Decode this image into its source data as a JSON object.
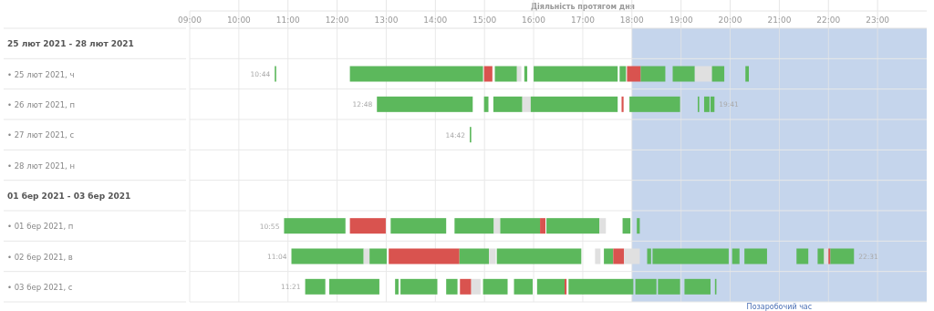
{
  "chart_data": {
    "type": "bar",
    "orientation": "horizontal",
    "title": "Діяльність протягом дня",
    "categories": [
      "25 лют 2021 - 28 лют 2021",
      "• 25 лют 2021, ч",
      "• 26 лют 2021, п",
      "• 27 лют 2021, с",
      "• 28 лют 2021, н",
      "01 бер 2021 - 03 бер 2021",
      "• 01 бер 2021, п",
      "• 02 бер 2021, в",
      "• 03 бер 2021, с"
    ],
    "xlim": [
      9,
      24
    ],
    "xticks": [
      {
        "value": 9,
        "label": "09:00"
      },
      {
        "value": 10,
        "label": "10:00"
      },
      {
        "value": 11,
        "label": "11:00"
      },
      {
        "value": 12,
        "label": "12:00"
      },
      {
        "value": 13,
        "label": "13:00"
      },
      {
        "value": 14,
        "label": "14:00"
      },
      {
        "value": 15,
        "label": "15:00"
      },
      {
        "value": 16,
        "label": "16:00"
      },
      {
        "value": 17,
        "label": "17:00"
      },
      {
        "value": 18,
        "label": "18:00"
      },
      {
        "value": 19,
        "label": "19:00"
      },
      {
        "value": 20,
        "label": "20:00"
      },
      {
        "value": 21,
        "label": "21:00"
      },
      {
        "value": 22,
        "label": "22:00"
      },
      {
        "value": 23,
        "label": "23:00"
      }
    ],
    "grid": "x",
    "bands": [
      {
        "axis": "x",
        "from": 18,
        "to": 24,
        "label": "Позаробочий час",
        "color": "#c5d5ec"
      }
    ],
    "annotations": [
      {
        "text": "10:44",
        "x": 10.73,
        "y": "• 25 лют 2021, ч"
      },
      {
        "text": "12:48",
        "x": 12.81,
        "y": "• 26 лют 2021, п"
      },
      {
        "text": "19:41",
        "x": 19.68,
        "y": "• 26 лют 2021, п"
      },
      {
        "text": "14:42",
        "x": 14.7,
        "y": "• 27 лют 2021, с"
      },
      {
        "text": "10:55",
        "x": 10.92,
        "y": "• 01 бер 2021, п"
      },
      {
        "text": "11:04",
        "x": 11.07,
        "y": "• 02 бер 2021, в"
      },
      {
        "text": "22:31",
        "x": 22.52,
        "y": "• 02 бер 2021, в"
      },
      {
        "text": "11:21",
        "x": 11.35,
        "y": "• 03 бер 2021, с"
      }
    ],
    "series": [
      {
        "base": [
          null,
          10.73,
          12.81,
          14.7,
          null,
          null,
          10.92,
          11.07,
          11.35
        ],
        "values": [
          null,
          0.03,
          1.95,
          0.03,
          null,
          null,
          1.25,
          1.47,
          0.41
        ],
        "colors": [
          null,
          "#5cb85c",
          "#5cb85c",
          "#5cb85c",
          null,
          null,
          "#5cb85c",
          "#5cb85c",
          "#5cb85c"
        ]
      },
      {
        "base": [
          null,
          12.26,
          14.99,
          null,
          null,
          null,
          12.26,
          12.54,
          11.84
        ],
        "values": [
          null,
          2.71,
          0.09,
          null,
          null,
          null,
          0.73,
          0.12,
          1.02
        ],
        "colors": [
          null,
          "#5cb85c",
          "#5cb85c",
          null,
          null,
          null,
          "#d9534f",
          "#e0e0e0",
          "#5cb85c"
        ]
      },
      {
        "base": [
          null,
          14.99,
          15.18,
          null,
          null,
          null,
          13.09,
          12.66,
          13.18
        ],
        "values": [
          null,
          0.17,
          0.59,
          null,
          null,
          null,
          1.13,
          0.35,
          0.07
        ],
        "colors": [
          null,
          "#d9534f",
          "#5cb85c",
          null,
          null,
          null,
          "#5cb85c",
          "#5cb85c",
          "#5cb85c"
        ]
      },
      {
        "base": [
          null,
          15.21,
          15.77,
          null,
          null,
          null,
          14.39,
          13.05,
          13.29
        ],
        "values": [
          null,
          0.45,
          0.17,
          null,
          null,
          null,
          0.8,
          1.44,
          0.75
        ],
        "colors": [
          null,
          "#5cb85c",
          "#e0e0e0",
          null,
          null,
          null,
          "#5cb85c",
          "#d9534f",
          "#5cb85c"
        ]
      },
      {
        "base": [
          null,
          15.66,
          15.94,
          null,
          null,
          null,
          15.19,
          14.49,
          14.22
        ],
        "values": [
          null,
          0.09,
          1.77,
          null,
          null,
          null,
          0.13,
          0.6,
          0.23
        ],
        "colors": [
          null,
          "#e0e0e0",
          "#5cb85c",
          null,
          null,
          null,
          "#e0e0e0",
          "#5cb85c",
          "#5cb85c"
        ]
      },
      {
        "base": [
          null,
          15.81,
          17.79,
          null,
          null,
          null,
          15.32,
          15.09,
          14.5
        ],
        "values": [
          null,
          0.06,
          0.04,
          null,
          null,
          null,
          0.81,
          0.14,
          0.23
        ],
        "colors": [
          null,
          "#5cb85c",
          "#d9534f",
          null,
          null,
          null,
          "#5cb85c",
          "#e0e0e0",
          "#d9534f"
        ]
      },
      {
        "base": [
          null,
          16.0,
          17.95,
          null,
          null,
          null,
          16.13,
          15.25,
          14.73
        ],
        "values": [
          null,
          1.71,
          1.03,
          null,
          null,
          null,
          0.11,
          1.72,
          0.19
        ],
        "colors": [
          null,
          "#5cb85c",
          "#5cb85c",
          null,
          null,
          null,
          "#d9534f",
          "#5cb85c",
          "#e0e0e0"
        ]
      },
      {
        "base": [
          null,
          17.75,
          19.34,
          null,
          null,
          null,
          16.26,
          17.25,
          14.97
        ],
        "values": [
          null,
          0.13,
          0.03,
          null,
          null,
          null,
          1.08,
          0.11,
          0.5
        ],
        "colors": [
          null,
          "#5cb85c",
          "#5cb85c",
          null,
          null,
          null,
          "#5cb85c",
          "#e0e0e0",
          "#5cb85c"
        ]
      },
      {
        "base": [
          null,
          17.9,
          19.47,
          null,
          null,
          null,
          17.34,
          17.43,
          15.6
        ],
        "values": [
          null,
          0.28,
          0.11,
          null,
          null,
          null,
          0.13,
          0.19,
          0.38
        ],
        "colors": [
          null,
          "#d9534f",
          "#5cb85c",
          null,
          null,
          null,
          "#e0e0e0",
          "#5cb85c",
          "#5cb85c"
        ]
      },
      {
        "base": [
          null,
          18.18,
          19.6,
          null,
          null,
          null,
          17.81,
          17.62,
          16.07
        ],
        "values": [
          null,
          0.5,
          0.08,
          null,
          null,
          null,
          0.16,
          0.22,
          0.56
        ],
        "colors": [
          null,
          "#5cb85c",
          "#5cb85c",
          null,
          null,
          null,
          "#5cb85c",
          "#d9534f",
          "#5cb85c"
        ]
      },
      {
        "base": [
          null,
          18.83,
          null,
          null,
          null,
          null,
          18.1,
          17.84,
          16.63
        ],
        "values": [
          null,
          0.45,
          null,
          null,
          null,
          null,
          0.06,
          0.32,
          0.04
        ],
        "colors": [
          null,
          "#5cb85c",
          null,
          null,
          null,
          null,
          "#5cb85c",
          "#e0e0e0",
          "#d9534f"
        ]
      },
      {
        "base": [
          null,
          19.28,
          null,
          null,
          null,
          null,
          null,
          18.31,
          16.71
        ],
        "values": [
          null,
          0.35,
          null,
          null,
          null,
          null,
          null,
          0.08,
          1.32
        ],
        "colors": [
          null,
          "#e0e0e0",
          null,
          null,
          null,
          null,
          null,
          "#5cb85c",
          "#5cb85c"
        ]
      },
      {
        "base": [
          null,
          19.63,
          null,
          null,
          null,
          null,
          null,
          18.42,
          18.07
        ],
        "values": [
          null,
          0.25,
          null,
          null,
          null,
          null,
          null,
          1.55,
          0.43
        ],
        "colors": [
          null,
          "#5cb85c",
          null,
          null,
          null,
          null,
          null,
          "#5cb85c",
          "#5cb85c"
        ]
      },
      {
        "base": [
          null,
          20.31,
          null,
          null,
          null,
          null,
          null,
          20.04,
          18.53
        ],
        "values": [
          null,
          0.07,
          null,
          null,
          null,
          null,
          null,
          0.15,
          0.45
        ],
        "colors": [
          null,
          "#5cb85c",
          null,
          null,
          null,
          null,
          null,
          "#5cb85c",
          "#5cb85c"
        ]
      },
      {
        "base": [
          null,
          null,
          null,
          null,
          null,
          null,
          null,
          20.29,
          19.07
        ],
        "values": [
          null,
          null,
          null,
          null,
          null,
          null,
          null,
          0.46,
          0.53
        ],
        "colors": [
          null,
          null,
          null,
          null,
          null,
          null,
          null,
          "#5cb85c",
          "#5cb85c"
        ]
      },
      {
        "base": [
          null,
          null,
          null,
          null,
          null,
          null,
          null,
          21.35,
          19.69
        ],
        "values": [
          null,
          null,
          null,
          null,
          null,
          null,
          null,
          0.24,
          0.03
        ],
        "colors": [
          null,
          null,
          null,
          null,
          null,
          null,
          null,
          "#5cb85c",
          "#5cb85c"
        ]
      },
      {
        "base": [
          null,
          null,
          null,
          null,
          null,
          null,
          null,
          21.78,
          null
        ],
        "values": [
          null,
          null,
          null,
          null,
          null,
          null,
          null,
          0.13,
          null
        ],
        "colors": [
          null,
          null,
          null,
          null,
          null,
          null,
          null,
          "#5cb85c",
          null
        ]
      },
      {
        "base": [
          null,
          null,
          null,
          null,
          null,
          null,
          null,
          21.91,
          null
        ],
        "values": [
          null,
          null,
          null,
          null,
          null,
          null,
          null,
          0.09,
          null
        ],
        "colors": [
          null,
          null,
          null,
          null,
          null,
          null,
          null,
          "#e0e0e0",
          null
        ]
      },
      {
        "base": [
          null,
          null,
          null,
          null,
          null,
          null,
          null,
          22.0,
          null
        ],
        "values": [
          null,
          null,
          null,
          null,
          null,
          null,
          null,
          0.04,
          null
        ],
        "colors": [
          null,
          null,
          null,
          null,
          null,
          null,
          null,
          "#d9534f",
          null
        ]
      },
      {
        "base": [
          null,
          null,
          null,
          null,
          null,
          null,
          null,
          22.04,
          null
        ],
        "values": [
          null,
          null,
          null,
          null,
          null,
          null,
          null,
          0.48,
          null
        ],
        "colors": [
          null,
          null,
          null,
          null,
          null,
          null,
          null,
          "#5cb85c",
          null
        ]
      }
    ]
  }
}
